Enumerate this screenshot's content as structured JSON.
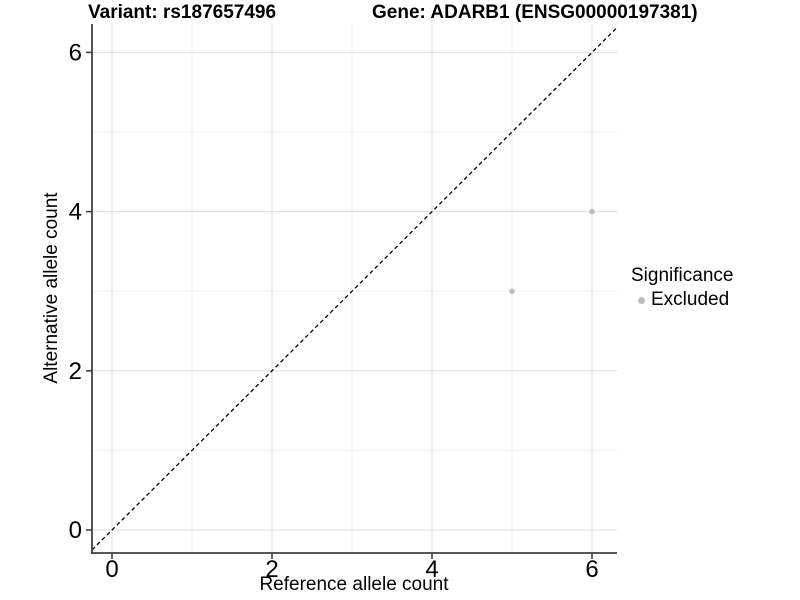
{
  "chart_data": {
    "type": "scatter",
    "titles": {
      "left": "Variant: rs187657496",
      "right": "Gene: ADARB1 (ENSG00000197381)"
    },
    "xlabel": "Reference allele count",
    "ylabel": "Alternative allele count",
    "xlim": [
      -0.25,
      6.3125
    ],
    "ylim": [
      -0.289,
      6.357
    ],
    "x_ticks": [
      0,
      2,
      4,
      6
    ],
    "y_ticks": [
      0,
      2,
      4,
      6
    ],
    "x_minor_ticks": [
      1,
      3,
      5
    ],
    "y_minor_ticks": [
      1,
      3,
      5
    ],
    "grid": "major_and_minor",
    "series": [
      {
        "name": "Excluded",
        "color": "#bdbdbd",
        "points": [
          {
            "x": 5,
            "y": 3
          },
          {
            "x": 6,
            "y": 4
          }
        ]
      }
    ],
    "reference_line": {
      "kind": "identity",
      "slope": 1,
      "intercept": 0,
      "style": "dashed",
      "color": "#000000"
    },
    "legend": {
      "position": "right",
      "title": "Significance",
      "items": [
        {
          "label": "Excluded",
          "color": "#bdbdbd",
          "marker": "circle"
        }
      ]
    }
  },
  "colors": {
    "background": "#ffffff",
    "grid_major": "#e3e3e3",
    "grid_minor": "#f1f1f1",
    "axis_line": "#404040",
    "tick_mark": "#404040",
    "text": "#000000",
    "point": "#bdbdbd"
  }
}
